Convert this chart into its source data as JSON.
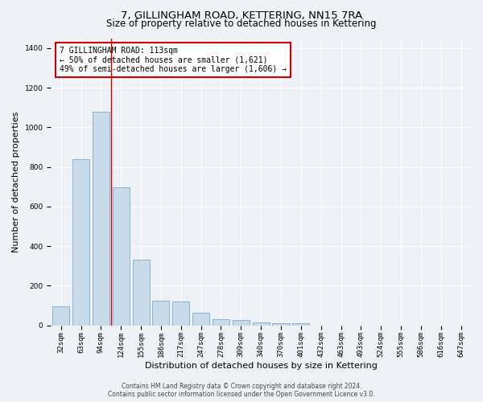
{
  "title": "7, GILLINGHAM ROAD, KETTERING, NN15 7RA",
  "subtitle": "Size of property relative to detached houses in Kettering",
  "xlabel": "Distribution of detached houses by size in Kettering",
  "ylabel": "Number of detached properties",
  "bar_color": "#c9daea",
  "bar_edge_color": "#7aaac8",
  "categories": [
    "32sqm",
    "63sqm",
    "94sqm",
    "124sqm",
    "155sqm",
    "186sqm",
    "217sqm",
    "247sqm",
    "278sqm",
    "309sqm",
    "340sqm",
    "370sqm",
    "401sqm",
    "432sqm",
    "463sqm",
    "493sqm",
    "524sqm",
    "555sqm",
    "586sqm",
    "616sqm",
    "647sqm"
  ],
  "values": [
    95,
    840,
    1080,
    695,
    330,
    125,
    120,
    65,
    30,
    25,
    15,
    12,
    12,
    0,
    0,
    0,
    0,
    0,
    0,
    0,
    0
  ],
  "vline_x_idx": 3,
  "vline_color": "#cc0000",
  "annotation_text": "7 GILLINGHAM ROAD: 113sqm\n← 50% of detached houses are smaller (1,621)\n49% of semi-detached houses are larger (1,606) →",
  "annotation_box_color": "#ffffff",
  "annotation_box_edge": "#cc0000",
  "ylim": [
    0,
    1450
  ],
  "yticks": [
    0,
    200,
    400,
    600,
    800,
    1000,
    1200,
    1400
  ],
  "footer_line1": "Contains HM Land Registry data © Crown copyright and database right 2024.",
  "footer_line2": "Contains public sector information licensed under the Open Government Licence v3.0.",
  "bg_color": "#eef2f7",
  "plot_bg_color": "#eef2f7",
  "title_fontsize": 9.5,
  "subtitle_fontsize": 8.5,
  "tick_fontsize": 6.5,
  "ylabel_fontsize": 8,
  "xlabel_fontsize": 8,
  "annotation_fontsize": 7,
  "footer_fontsize": 5.5
}
